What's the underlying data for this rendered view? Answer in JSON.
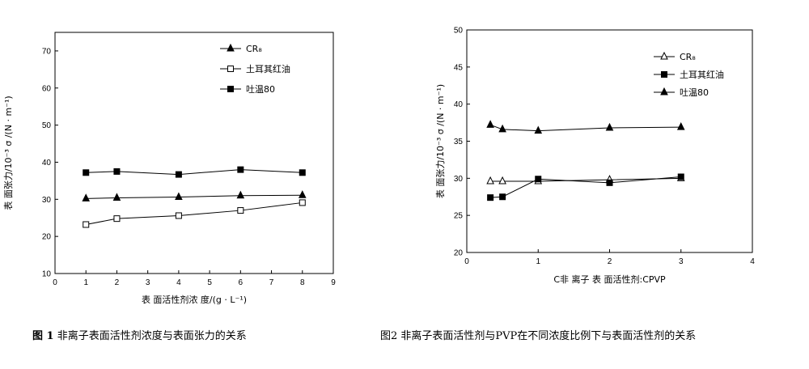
{
  "chart_data": [
    {
      "type": "line",
      "title": "",
      "xlabel": "表 面活性剂浓 度/(g · L⁻¹)",
      "ylabel": "表 面张力/10⁻³ σ /(N · m⁻¹)",
      "xlim": [
        0,
        9
      ],
      "ylim": [
        10,
        75
      ],
      "xticks": [
        0,
        1,
        2,
        3,
        4,
        5,
        6,
        7,
        8,
        9
      ],
      "yticks": [
        10,
        20,
        30,
        40,
        50,
        60,
        70
      ],
      "legend_position": "top-right",
      "series": [
        {
          "name": "CR₈",
          "marker": "triangle-filled",
          "x": [
            1,
            2,
            4,
            6,
            8
          ],
          "y": [
            30.2,
            30.4,
            30.6,
            31.0,
            31.1
          ]
        },
        {
          "name": "土耳其红油",
          "marker": "square-open",
          "x": [
            1,
            2,
            4,
            6,
            8
          ],
          "y": [
            23.2,
            24.8,
            25.6,
            27.0,
            29.1
          ]
        },
        {
          "name": "吐温80",
          "marker": "square-filled",
          "x": [
            1,
            2,
            4,
            6,
            8
          ],
          "y": [
            37.2,
            37.5,
            36.7,
            38.0,
            37.2
          ]
        }
      ]
    },
    {
      "type": "line",
      "title": "",
      "xlabel": "C非 离子 表 面活性剂:CPVP",
      "ylabel": "表 面张力/10⁻³ σ /(N · m⁻¹)",
      "xlim": [
        0,
        4
      ],
      "ylim": [
        20,
        50
      ],
      "xticks": [
        0,
        1,
        2,
        3,
        4
      ],
      "yticks": [
        20,
        25,
        30,
        35,
        40,
        45,
        50
      ],
      "legend_position": "top-right",
      "series": [
        {
          "name": "CR₈",
          "marker": "triangle-open",
          "x": [
            0.33,
            0.5,
            1,
            2,
            3
          ],
          "y": [
            29.6,
            29.6,
            29.6,
            29.8,
            30.0
          ]
        },
        {
          "name": "土耳其红油",
          "marker": "square-filled",
          "x": [
            0.33,
            0.5,
            1,
            2,
            3
          ],
          "y": [
            27.4,
            27.5,
            29.9,
            29.4,
            30.2
          ]
        },
        {
          "name": "吐温80",
          "marker": "triangle-filled",
          "x": [
            0.33,
            0.5,
            1,
            2,
            3
          ],
          "y": [
            37.2,
            36.6,
            36.4,
            36.8,
            36.9
          ]
        }
      ]
    }
  ],
  "captions": {
    "fig1_num": "图 1",
    "fig1_text": " 非离子表面活性剂浓度与表面张力的关系",
    "fig2_text": "图2 非离子表面活性剂与PVP在不同浓度比例下与表面活性剂的关系"
  },
  "styles": {
    "line_color": "#000000",
    "axis_color": "#000000"
  }
}
